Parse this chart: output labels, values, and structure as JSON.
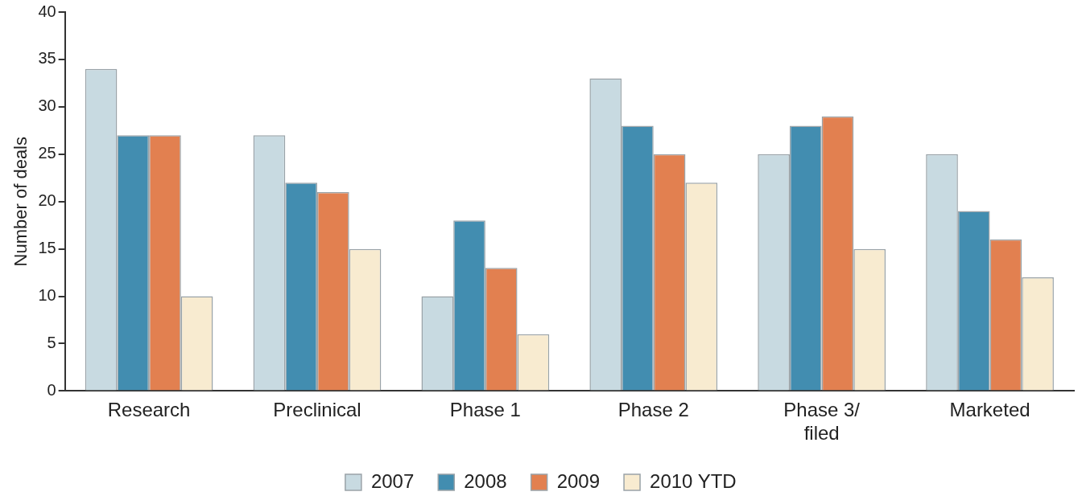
{
  "chart_data": {
    "type": "bar",
    "ylabel": "Number of deals",
    "categories": [
      "Research",
      "Preclinical",
      "Phase 1",
      "Phase 2",
      "Phase 3/\nfiled",
      "Marketed"
    ],
    "series": [
      {
        "name": "2007",
        "color": "#c8dae1",
        "values": [
          34,
          27,
          10,
          33,
          25,
          25
        ]
      },
      {
        "name": "2008",
        "color": "#428db0",
        "values": [
          27,
          22,
          18,
          28,
          28,
          19
        ]
      },
      {
        "name": "2009",
        "color": "#e28050",
        "values": [
          27,
          21,
          13,
          25,
          29,
          16
        ]
      },
      {
        "name": "2010 YTD",
        "color": "#f8ebd0",
        "values": [
          10,
          15,
          6,
          22,
          15,
          12
        ]
      }
    ],
    "ylim": [
      0,
      40
    ],
    "yticks": [
      0,
      5,
      10,
      15,
      20,
      25,
      30,
      35,
      40
    ],
    "grid": false,
    "legend": "bottom"
  }
}
